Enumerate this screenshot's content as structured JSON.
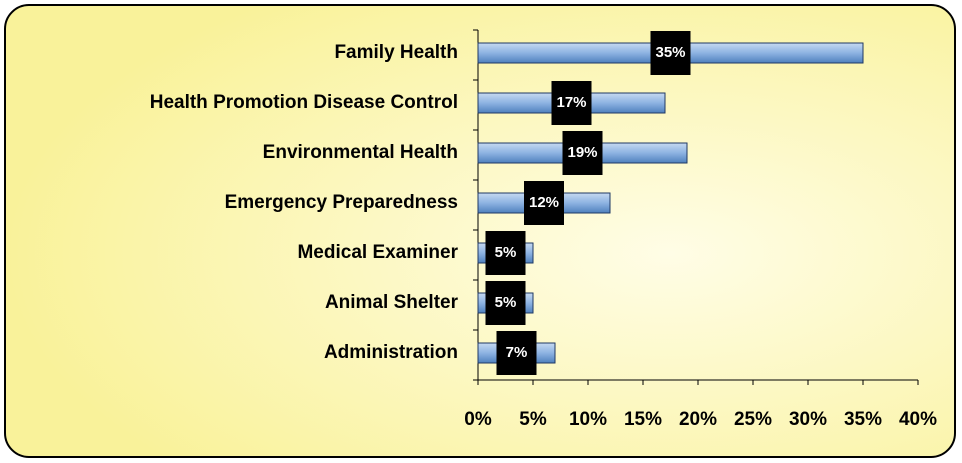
{
  "chart_data": {
    "type": "bar",
    "orientation": "horizontal",
    "categories": [
      "Family Health",
      "Health Promotion Disease Control",
      "Environmental Health",
      "Emergency Preparedness",
      "Medical Examiner",
      "Animal Shelter",
      "Administration"
    ],
    "values": [
      35,
      17,
      19,
      12,
      5,
      5,
      7
    ],
    "value_labels": [
      "35%",
      "17%",
      "19%",
      "12%",
      "5%",
      "5%",
      "7%"
    ],
    "color": "#8db3e2",
    "xlim": [
      0,
      40
    ],
    "xticks": [
      {
        "value": 0,
        "label": "0%"
      },
      {
        "value": 5,
        "label": "5%"
      },
      {
        "value": 10,
        "label": "10%"
      },
      {
        "value": 15,
        "label": "15%"
      },
      {
        "value": 20,
        "label": "20%"
      },
      {
        "value": 25,
        "label": "25%"
      },
      {
        "value": 30,
        "label": "30%"
      },
      {
        "value": 35,
        "label": "35%"
      },
      {
        "value": 40,
        "label": "40%"
      }
    ],
    "grid": false
  }
}
